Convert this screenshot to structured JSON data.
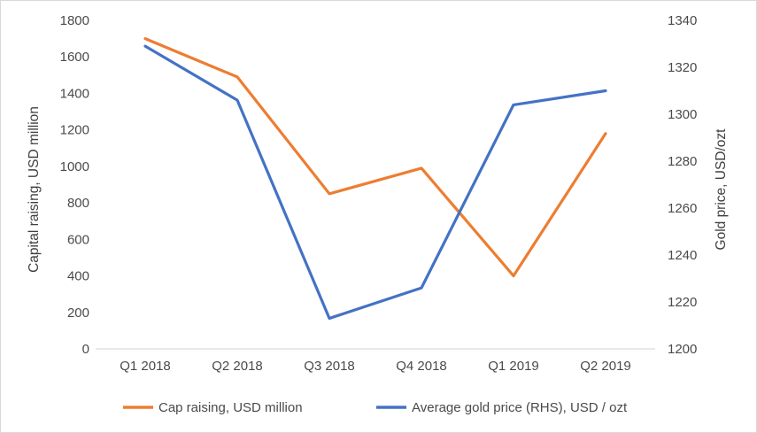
{
  "chart_data": {
    "type": "line",
    "title": "",
    "categories": [
      "Q1 2018",
      "Q2 2018",
      "Q3 2018",
      "Q4 2018",
      "Q1 2019",
      "Q2 2019"
    ],
    "series": [
      {
        "name": "Cap raising, USD million",
        "axis": "left",
        "color": "#ED7D31",
        "values": [
          1700,
          1490,
          850,
          990,
          400,
          1180
        ]
      },
      {
        "name": "Average gold price (RHS), USD / ozt",
        "axis": "right",
        "color": "#4472C4",
        "values": [
          1329,
          1306,
          1213,
          1226,
          1304,
          1310
        ]
      }
    ],
    "left_axis": {
      "label": "Capital raising, USD million",
      "range": [
        0,
        1800
      ],
      "tick_step": 200
    },
    "right_axis": {
      "label": "Gold price, USD/ozt",
      "range": [
        1200,
        1340
      ],
      "tick_step": 20
    },
    "xlabel": "",
    "grid": "off",
    "legend_position": "bottom",
    "axis_line_color": "#d9d9d9",
    "background_color": "#ffffff"
  }
}
